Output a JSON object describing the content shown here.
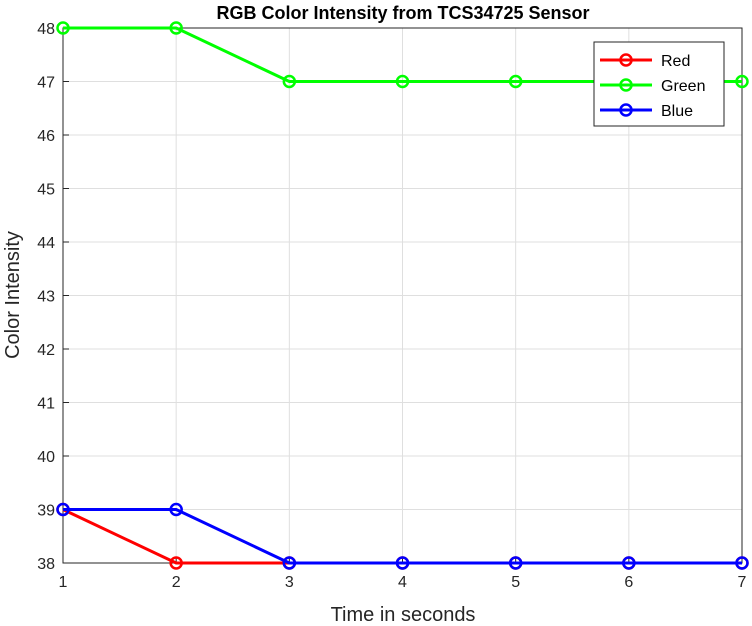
{
  "chart_data": {
    "type": "line",
    "title": "RGB Color Intensity from TCS34725 Sensor",
    "xlabel": "Time in seconds",
    "ylabel": "Color Intensity",
    "x": [
      1,
      2,
      3,
      4,
      5,
      6,
      7
    ],
    "xlim": [
      1,
      7
    ],
    "ylim": [
      38,
      48
    ],
    "xticks": [
      "1",
      "2",
      "3",
      "4",
      "5",
      "6",
      "7"
    ],
    "yticks": [
      "38",
      "39",
      "40",
      "41",
      "42",
      "43",
      "44",
      "45",
      "46",
      "47",
      "48"
    ],
    "grid": true,
    "legend_position": "top-right",
    "marker": "circle",
    "series": [
      {
        "name": "Red",
        "color": "#ff0000",
        "values": [
          39,
          38,
          38,
          38,
          38,
          38,
          38
        ]
      },
      {
        "name": "Green",
        "color": "#00ff00",
        "values": [
          48,
          48,
          47,
          47,
          47,
          47,
          47
        ]
      },
      {
        "name": "Blue",
        "color": "#0000ff",
        "values": [
          39,
          39,
          38,
          38,
          38,
          38,
          38
        ]
      }
    ]
  }
}
